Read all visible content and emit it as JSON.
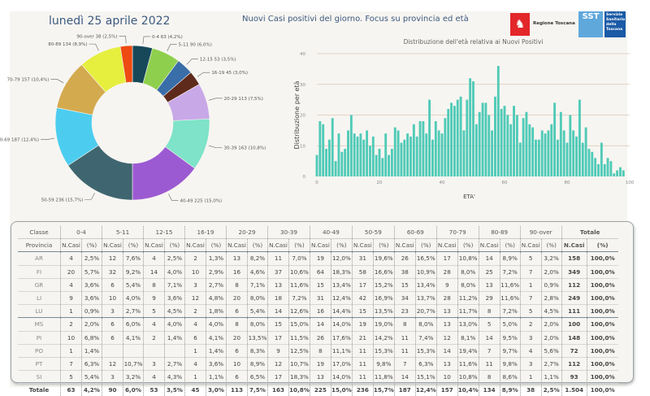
{
  "header": {
    "date": "lunedì 25 aprile 2022",
    "title": "Nuovi Casi positivi del giorno. Focus su provincia ed età",
    "logo_regione": "Regione Toscana",
    "logo_sst_short": "SST",
    "logo_sst_full": "Servizio Sanitario della Toscana"
  },
  "chart_data": [
    {
      "type": "pie",
      "variant": "donut",
      "title": "",
      "slices": [
        {
          "label": "0-4",
          "value": 63,
          "pct": "4,2%",
          "color": "#16485a"
        },
        {
          "label": "5-11",
          "value": 90,
          "pct": "6,0%",
          "color": "#8ed04e"
        },
        {
          "label": "12-15",
          "value": 53,
          "pct": "3,5%",
          "color": "#3a6ea8"
        },
        {
          "label": "16-19",
          "value": 45,
          "pct": "3,0%",
          "color": "#5e2a1c"
        },
        {
          "label": "20-29",
          "value": 113,
          "pct": "7,5%",
          "color": "#c9a8e8"
        },
        {
          "label": "30-39",
          "value": 163,
          "pct": "10,8%",
          "color": "#7ee3c8"
        },
        {
          "label": "40-49",
          "value": 225,
          "pct": "15,0%",
          "color": "#9c5ad2"
        },
        {
          "label": "50-59",
          "value": 236,
          "pct": "15,7%",
          "color": "#3f6670"
        },
        {
          "label": "60-69",
          "value": 187,
          "pct": "12,4%",
          "color": "#4ccdf0"
        },
        {
          "label": "70-79",
          "value": 157,
          "pct": "10,4%",
          "color": "#d4aa4e"
        },
        {
          "label": "80-89",
          "value": 134,
          "pct": "8,9%",
          "color": "#e6ef3e"
        },
        {
          "label": "90-over",
          "value": 38,
          "pct": "2,5%",
          "color": "#ee4a12"
        }
      ]
    },
    {
      "type": "bar",
      "title": "Distribuzione dell'età relativa ai Nuovi Positivi",
      "xlabel": "ETA'",
      "ylabel": "Distribuzione per età",
      "xlim": [
        0,
        100
      ],
      "ylim": [
        0,
        40
      ],
      "xticks": [
        0,
        20,
        40,
        60,
        80,
        100
      ],
      "yticks": [
        0,
        10,
        20,
        30,
        40
      ],
      "grid": true,
      "color": "#4fcab7",
      "x": [
        0,
        1,
        2,
        3,
        4,
        5,
        6,
        7,
        8,
        9,
        10,
        11,
        12,
        13,
        14,
        15,
        16,
        17,
        18,
        19,
        20,
        21,
        22,
        23,
        24,
        25,
        26,
        27,
        28,
        29,
        30,
        31,
        32,
        33,
        34,
        35,
        36,
        37,
        38,
        39,
        40,
        41,
        42,
        43,
        44,
        45,
        46,
        47,
        48,
        49,
        50,
        51,
        52,
        53,
        54,
        55,
        56,
        57,
        58,
        59,
        60,
        61,
        62,
        63,
        64,
        65,
        66,
        67,
        68,
        69,
        70,
        71,
        72,
        73,
        74,
        75,
        76,
        77,
        78,
        79,
        80,
        81,
        82,
        83,
        84,
        85,
        86,
        87,
        88,
        89,
        90,
        91,
        92,
        93,
        94,
        95,
        96,
        97,
        98
      ],
      "values": [
        7,
        18,
        17,
        9,
        12,
        19,
        5,
        14,
        8,
        9,
        15,
        20,
        14,
        13,
        14,
        12,
        15,
        10,
        13,
        7,
        9,
        6,
        14,
        7,
        9,
        16,
        15,
        11,
        12,
        14,
        13,
        17,
        13,
        18,
        18,
        14,
        25,
        12,
        18,
        15,
        14,
        19,
        22,
        24,
        23,
        25,
        26,
        15,
        25,
        32,
        31,
        17,
        21,
        24,
        24,
        20,
        15,
        26,
        36,
        22,
        23,
        20,
        17,
        23,
        20,
        11,
        19,
        21,
        17,
        16,
        12,
        12,
        15,
        14,
        15,
        17,
        24,
        12,
        21,
        15,
        11,
        20,
        15,
        13,
        25,
        11,
        16,
        9,
        8,
        6,
        4,
        11,
        4,
        6,
        5,
        1,
        2,
        3,
        2
      ]
    },
    {
      "type": "table",
      "header_row1_label": "Classe",
      "header_row2_label": "Provincia",
      "classes": [
        "0-4",
        "5-11",
        "12-15",
        "16-19",
        "20-29",
        "30-39",
        "40-49",
        "50-59",
        "60-69",
        "70-79",
        "80-89",
        "90-over"
      ],
      "total_label": "Totale",
      "col_ncasi": "N.Casi",
      "col_pct": "(%)",
      "rows": [
        {
          "prov": "AR",
          "cells": [
            [
              "4",
              "2,5%"
            ],
            [
              "12",
              "7,6%"
            ],
            [
              "4",
              "2,5%"
            ],
            [
              "2",
              "1,3%"
            ],
            [
              "13",
              "8,2%"
            ],
            [
              "11",
              "7,0%"
            ],
            [
              "19",
              "12,0%"
            ],
            [
              "31",
              "19,6%"
            ],
            [
              "26",
              "16,5%"
            ],
            [
              "17",
              "10,8%"
            ],
            [
              "14",
              "8,9%"
            ],
            [
              "5",
              "3,2%"
            ]
          ],
          "tot": [
            "158",
            "100,0%"
          ]
        },
        {
          "prov": "FI",
          "cells": [
            [
              "20",
              "5,7%"
            ],
            [
              "32",
              "9,2%"
            ],
            [
              "14",
              "4,0%"
            ],
            [
              "10",
              "2,9%"
            ],
            [
              "16",
              "4,6%"
            ],
            [
              "37",
              "10,6%"
            ],
            [
              "64",
              "18,3%"
            ],
            [
              "58",
              "16,6%"
            ],
            [
              "38",
              "10,9%"
            ],
            [
              "28",
              "8,0%"
            ],
            [
              "25",
              "7,2%"
            ],
            [
              "7",
              "2,0%"
            ]
          ],
          "tot": [
            "349",
            "100,0%"
          ]
        },
        {
          "prov": "GR",
          "cells": [
            [
              "4",
              "3,6%"
            ],
            [
              "6",
              "5,4%"
            ],
            [
              "8",
              "7,1%"
            ],
            [
              "3",
              "2,7%"
            ],
            [
              "8",
              "7,1%"
            ],
            [
              "13",
              "11,6%"
            ],
            [
              "15",
              "13,4%"
            ],
            [
              "17",
              "15,2%"
            ],
            [
              "15",
              "13,4%"
            ],
            [
              "9",
              "8,0%"
            ],
            [
              "13",
              "11,6%"
            ],
            [
              "1",
              "0,9%"
            ]
          ],
          "tot": [
            "112",
            "100,0%"
          ]
        },
        {
          "prov": "LI",
          "cells": [
            [
              "9",
              "3,6%"
            ],
            [
              "10",
              "4,0%"
            ],
            [
              "9",
              "3,6%"
            ],
            [
              "12",
              "4,8%"
            ],
            [
              "20",
              "8,0%"
            ],
            [
              "18",
              "7,2%"
            ],
            [
              "31",
              "12,4%"
            ],
            [
              "42",
              "16,9%"
            ],
            [
              "34",
              "13,7%"
            ],
            [
              "28",
              "11,2%"
            ],
            [
              "29",
              "11,6%"
            ],
            [
              "7",
              "2,8%"
            ]
          ],
          "tot": [
            "249",
            "100,0%"
          ]
        },
        {
          "prov": "LU",
          "cells": [
            [
              "1",
              "0,9%"
            ],
            [
              "3",
              "2,7%"
            ],
            [
              "5",
              "4,5%"
            ],
            [
              "2",
              "1,8%"
            ],
            [
              "6",
              "5,4%"
            ],
            [
              "14",
              "12,6%"
            ],
            [
              "16",
              "14,4%"
            ],
            [
              "15",
              "13,5%"
            ],
            [
              "23",
              "20,7%"
            ],
            [
              "13",
              "11,7%"
            ],
            [
              "8",
              "7,2%"
            ],
            [
              "5",
              "4,5%"
            ]
          ],
          "tot": [
            "111",
            "100,0%"
          ]
        },
        {
          "prov": "MS",
          "cells": [
            [
              "2",
              "2,0%"
            ],
            [
              "6",
              "6,0%"
            ],
            [
              "4",
              "4,0%"
            ],
            [
              "4",
              "4,0%"
            ],
            [
              "8",
              "8,0%"
            ],
            [
              "15",
              "15,0%"
            ],
            [
              "14",
              "14,0%"
            ],
            [
              "19",
              "19,0%"
            ],
            [
              "8",
              "8,0%"
            ],
            [
              "13",
              "13,0%"
            ],
            [
              "5",
              "5,0%"
            ],
            [
              "2",
              "2,0%"
            ]
          ],
          "tot": [
            "100",
            "100,0%"
          ]
        },
        {
          "prov": "PI",
          "cells": [
            [
              "10",
              "6,8%"
            ],
            [
              "6",
              "4,1%"
            ],
            [
              "2",
              "1,4%"
            ],
            [
              "6",
              "4,1%"
            ],
            [
              "20",
              "13,5%"
            ],
            [
              "17",
              "11,5%"
            ],
            [
              "26",
              "17,6%"
            ],
            [
              "21",
              "14,2%"
            ],
            [
              "11",
              "7,4%"
            ],
            [
              "12",
              "8,1%"
            ],
            [
              "14",
              "9,5%"
            ],
            [
              "3",
              "2,0%"
            ]
          ],
          "tot": [
            "148",
            "100,0%"
          ]
        },
        {
          "prov": "PO",
          "cells": [
            [
              "1",
              "1,4%"
            ],
            [
              "",
              ""
            ],
            [
              "",
              ""
            ],
            [
              "1",
              "1,4%"
            ],
            [
              "6",
              "8,3%"
            ],
            [
              "9",
              "12,5%"
            ],
            [
              "8",
              "11,1%"
            ],
            [
              "11",
              "15,3%"
            ],
            [
              "11",
              "15,3%"
            ],
            [
              "14",
              "19,4%"
            ],
            [
              "7",
              "9,7%"
            ],
            [
              "4",
              "5,6%"
            ]
          ],
          "tot": [
            "72",
            "100,0%"
          ]
        },
        {
          "prov": "PT",
          "cells": [
            [
              "7",
              "6,3%"
            ],
            [
              "12",
              "10,7%"
            ],
            [
              "3",
              "2,7%"
            ],
            [
              "4",
              "3,6%"
            ],
            [
              "10",
              "8,9%"
            ],
            [
              "12",
              "10,7%"
            ],
            [
              "19",
              "17,0%"
            ],
            [
              "11",
              "9,8%"
            ],
            [
              "7",
              "6,3%"
            ],
            [
              "13",
              "11,6%"
            ],
            [
              "11",
              "9,8%"
            ],
            [
              "3",
              "2,7%"
            ]
          ],
          "tot": [
            "112",
            "100,0%"
          ]
        },
        {
          "prov": "SI",
          "cells": [
            [
              "5",
              "5,4%"
            ],
            [
              "3",
              "3,2%"
            ],
            [
              "4",
              "4,3%"
            ],
            [
              "1",
              "1,1%"
            ],
            [
              "6",
              "6,5%"
            ],
            [
              "17",
              "18,3%"
            ],
            [
              "13",
              "14,0%"
            ],
            [
              "11",
              "11,8%"
            ],
            [
              "14",
              "15,1%"
            ],
            [
              "10",
              "10,8%"
            ],
            [
              "8",
              "8,6%"
            ],
            [
              "1",
              "1,1%"
            ]
          ],
          "tot": [
            "93",
            "100,0%"
          ]
        }
      ],
      "totals": {
        "prov": "Totale",
        "cells": [
          [
            "63",
            "4,2%"
          ],
          [
            "90",
            "6,0%"
          ],
          [
            "53",
            "3,5%"
          ],
          [
            "45",
            "3,0%"
          ],
          [
            "113",
            "7,5%"
          ],
          [
            "163",
            "10,8%"
          ],
          [
            "225",
            "15,0%"
          ],
          [
            "236",
            "15,7%"
          ],
          [
            "187",
            "12,4%"
          ],
          [
            "157",
            "10,4%"
          ],
          [
            "134",
            "8,9%"
          ],
          [
            "38",
            "2,5%"
          ]
        ],
        "tot": [
          "1.504",
          "100,0%"
        ]
      }
    }
  ]
}
